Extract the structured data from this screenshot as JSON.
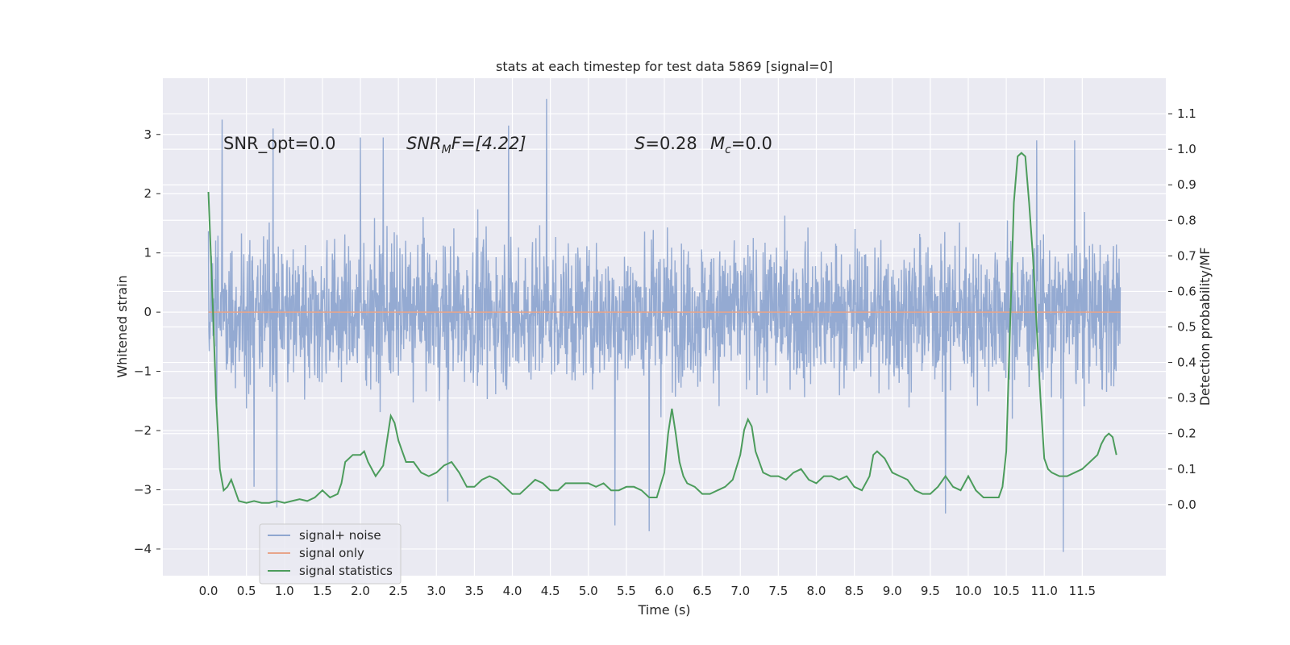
{
  "chart_data": {
    "type": "line",
    "title": "stats at each timestep for test data 5869 [signal=0]",
    "xlabel": "Time (s)",
    "ylabel": "Whitened strain",
    "ylabel_right": "Detection probability/MF",
    "xlim": [
      -0.6,
      12.6
    ],
    "ylim": [
      -4.45,
      3.95
    ],
    "ylim_right": [
      -0.2,
      1.2
    ],
    "x_ticks": [
      0.0,
      0.5,
      1.0,
      1.5,
      2.0,
      2.5,
      3.0,
      3.5,
      4.0,
      4.5,
      5.0,
      5.5,
      6.0,
      6.5,
      7.0,
      7.5,
      8.0,
      8.5,
      9.0,
      9.5,
      10.0,
      10.5,
      11.0,
      11.5
    ],
    "x_tick_labels": [
      "0.0",
      "0.5",
      "1.0",
      "1.5",
      "2.0",
      "2.5",
      "3.0",
      "3.5",
      "4.0",
      "4.5",
      "5.0",
      "5.5",
      "6.0",
      "6.5",
      "7.0",
      "7.5",
      "8.0",
      "8.5",
      "9.0",
      "9.5",
      "10.0",
      "10.5",
      "11.0",
      "11.5"
    ],
    "y_ticks": [
      3,
      2,
      1,
      0,
      -1,
      -2,
      -3,
      -4
    ],
    "y_tick_labels": [
      "3",
      "2",
      "1",
      "0",
      "−1",
      "−2",
      "−3",
      "−4"
    ],
    "y_right_ticks": [
      1.1,
      1.0,
      0.9,
      0.8,
      0.7,
      0.6,
      0.5,
      0.4,
      0.3,
      0.2,
      0.1,
      0.0
    ],
    "y_right_tick_labels": [
      "1.1",
      "1.0",
      "0.9",
      "0.8",
      "0.7",
      "0.6",
      "0.5",
      "0.4",
      "0.3",
      "0.2",
      "0.1",
      "0.0"
    ],
    "grid": true,
    "legend_position": "lower-left",
    "annotations": {
      "snr_opt": "SNR_opt=0.0",
      "snr_mf": "SNR",
      "snr_mf_sub": "M",
      "snr_mf_rest": "F=[4.22]",
      "s_label": "S",
      "s_value": "=0.28",
      "mc_label": "M",
      "mc_sub": "c",
      "mc_value": "=0.0"
    },
    "series": [
      {
        "name": "signal+ noise",
        "color": "#8fa6d0",
        "axis": "left",
        "x_range": [
          0.0,
          12.0
        ],
        "envelope_typical": [
          -1.6,
          1.6
        ],
        "spike_min": [
          [
            0.9,
            -3.3
          ],
          [
            5.8,
            -3.7
          ],
          [
            5.35,
            -3.6
          ],
          [
            11.25,
            -4.05
          ],
          [
            9.7,
            -3.4
          ],
          [
            3.15,
            -3.2
          ],
          [
            0.6,
            -2.95
          ]
        ],
        "spike_max": [
          [
            4.45,
            3.6
          ],
          [
            0.18,
            3.25
          ],
          [
            3.95,
            3.15
          ],
          [
            0.85,
            3.1
          ],
          [
            10.9,
            2.9
          ],
          [
            11.4,
            2.9
          ],
          [
            2.3,
            2.95
          ],
          [
            2.0,
            2.95
          ]
        ]
      },
      {
        "name": "signal only",
        "color": "#e8a58a",
        "axis": "left",
        "x": [
          0.0,
          12.0
        ],
        "y": [
          0.0,
          0.0
        ]
      },
      {
        "name": "signal statistics",
        "color": "#4c9c5c",
        "axis": "right",
        "x": [
          0.0,
          0.05,
          0.1,
          0.15,
          0.2,
          0.25,
          0.3,
          0.35,
          0.4,
          0.5,
          0.6,
          0.7,
          0.8,
          0.9,
          1.0,
          1.1,
          1.2,
          1.3,
          1.4,
          1.5,
          1.6,
          1.7,
          1.75,
          1.8,
          1.9,
          2.0,
          2.05,
          2.1,
          2.2,
          2.3,
          2.35,
          2.4,
          2.45,
          2.5,
          2.55,
          2.6,
          2.7,
          2.8,
          2.9,
          3.0,
          3.1,
          3.2,
          3.3,
          3.4,
          3.5,
          3.6,
          3.7,
          3.8,
          3.9,
          4.0,
          4.1,
          4.2,
          4.3,
          4.4,
          4.5,
          4.6,
          4.7,
          4.8,
          4.9,
          5.0,
          5.1,
          5.2,
          5.3,
          5.4,
          5.5,
          5.6,
          5.7,
          5.8,
          5.9,
          6.0,
          6.05,
          6.1,
          6.15,
          6.2,
          6.25,
          6.3,
          6.4,
          6.5,
          6.6,
          6.7,
          6.8,
          6.9,
          7.0,
          7.05,
          7.1,
          7.15,
          7.2,
          7.3,
          7.4,
          7.5,
          7.6,
          7.7,
          7.8,
          7.9,
          8.0,
          8.1,
          8.2,
          8.3,
          8.4,
          8.5,
          8.6,
          8.7,
          8.75,
          8.8,
          8.9,
          9.0,
          9.1,
          9.2,
          9.3,
          9.4,
          9.5,
          9.6,
          9.7,
          9.8,
          9.9,
          10.0,
          10.1,
          10.2,
          10.3,
          10.4,
          10.45,
          10.5,
          10.55,
          10.6,
          10.65,
          10.7,
          10.75,
          10.8,
          10.85,
          10.9,
          10.95,
          11.0,
          11.05,
          11.1,
          11.2,
          11.3,
          11.4,
          11.5,
          11.6,
          11.7,
          11.75,
          11.8,
          11.85,
          11.9,
          11.95
        ],
        "y": [
          0.88,
          0.6,
          0.3,
          0.1,
          0.04,
          0.05,
          0.07,
          0.04,
          0.01,
          0.005,
          0.01,
          0.005,
          0.005,
          0.01,
          0.005,
          0.01,
          0.015,
          0.01,
          0.02,
          0.04,
          0.02,
          0.03,
          0.06,
          0.12,
          0.14,
          0.14,
          0.15,
          0.12,
          0.08,
          0.11,
          0.18,
          0.25,
          0.23,
          0.18,
          0.15,
          0.12,
          0.12,
          0.09,
          0.08,
          0.09,
          0.11,
          0.12,
          0.09,
          0.05,
          0.05,
          0.07,
          0.08,
          0.07,
          0.05,
          0.03,
          0.03,
          0.05,
          0.07,
          0.06,
          0.04,
          0.04,
          0.06,
          0.06,
          0.06,
          0.06,
          0.05,
          0.06,
          0.04,
          0.04,
          0.05,
          0.05,
          0.04,
          0.02,
          0.02,
          0.09,
          0.2,
          0.27,
          0.2,
          0.12,
          0.08,
          0.06,
          0.05,
          0.03,
          0.03,
          0.04,
          0.05,
          0.07,
          0.14,
          0.21,
          0.24,
          0.22,
          0.15,
          0.09,
          0.08,
          0.08,
          0.07,
          0.09,
          0.1,
          0.07,
          0.06,
          0.08,
          0.08,
          0.07,
          0.08,
          0.05,
          0.04,
          0.08,
          0.14,
          0.15,
          0.13,
          0.09,
          0.08,
          0.07,
          0.04,
          0.03,
          0.03,
          0.05,
          0.08,
          0.05,
          0.04,
          0.08,
          0.04,
          0.02,
          0.02,
          0.02,
          0.05,
          0.15,
          0.5,
          0.85,
          0.98,
          0.99,
          0.98,
          0.85,
          0.7,
          0.5,
          0.3,
          0.13,
          0.1,
          0.09,
          0.08,
          0.08,
          0.09,
          0.1,
          0.12,
          0.14,
          0.17,
          0.19,
          0.2,
          0.19,
          0.14
        ]
      }
    ]
  }
}
